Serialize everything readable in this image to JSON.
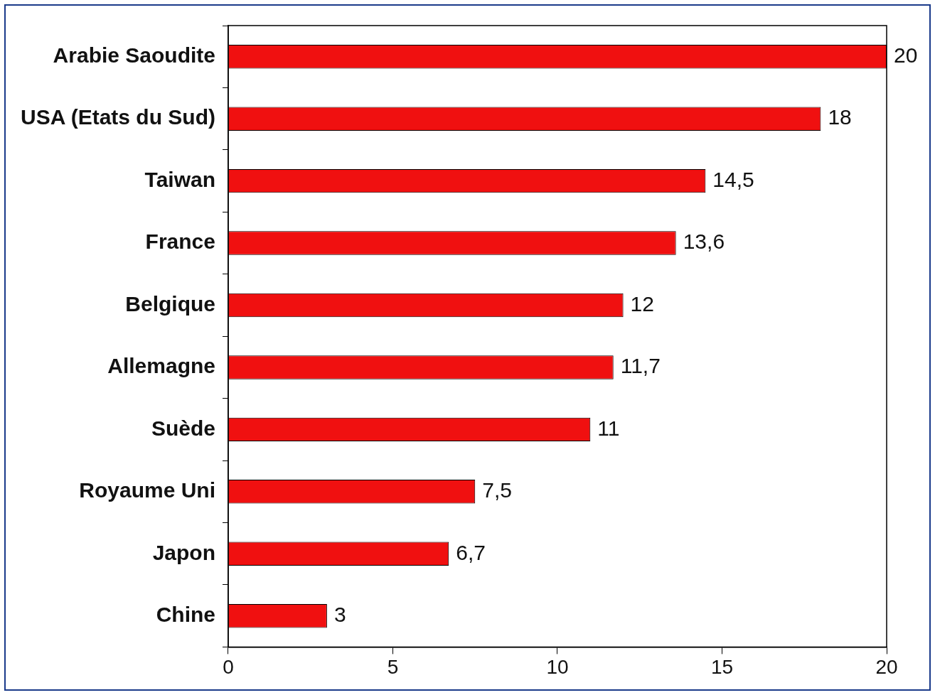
{
  "chart_data": {
    "type": "bar",
    "orientation": "horizontal",
    "categories": [
      "Arabie Saoudite",
      "USA (Etats du Sud)",
      "Taiwan",
      "France",
      "Belgique",
      "Allemagne",
      "Suède",
      "Royaume Uni",
      "Japon",
      "Chine"
    ],
    "values": [
      20,
      18,
      14.5,
      13.6,
      12,
      11.7,
      11,
      7.5,
      6.7,
      3
    ],
    "value_labels": [
      "20",
      "18",
      "14,5",
      "13,6",
      "12",
      "11,7",
      "11",
      "7,5",
      "6,7",
      "3"
    ],
    "color": "#f01010",
    "xlim": [
      0,
      20
    ],
    "xticks": [
      0,
      5,
      10,
      15,
      20
    ],
    "grid": false,
    "legend": false
  }
}
